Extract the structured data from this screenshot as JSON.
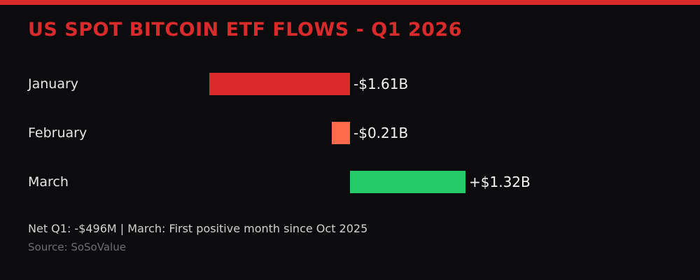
{
  "page": {
    "background": "#0c0c0e",
    "accent_strip_color": "#d92b2b"
  },
  "chart_data": {
    "type": "bar",
    "orientation": "horizontal",
    "title": "US SPOT BITCOIN ETF FLOWS - Q1 2026",
    "title_color": "#d92b2b",
    "unit": "USD billions",
    "categories": [
      "January",
      "February",
      "March"
    ],
    "values": [
      -1.61,
      -0.21,
      1.32
    ],
    "value_labels": [
      "-$1.61B",
      "-$0.21B",
      "+$1.32B"
    ],
    "bar_colors": [
      "#dc2a2a",
      "#ff6b4a",
      "#26c967"
    ],
    "baseline": 0,
    "xlim": [
      -4,
      4
    ],
    "grid": false,
    "legend": false,
    "label_color": "#e6e6e6",
    "value_label_color": "#f5f5f5"
  },
  "footer": {
    "note": "Net Q1: -$496M | March: First positive month since Oct 2025",
    "source": "Source: SoSoValue"
  }
}
